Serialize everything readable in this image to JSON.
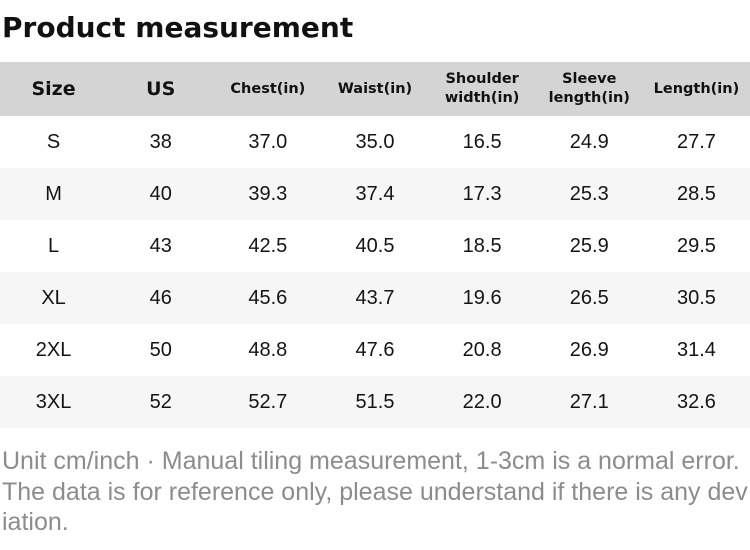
{
  "title": "Product measurement",
  "table": {
    "columns": [
      "Size",
      "US",
      "Chest(in)",
      "Waist(in)",
      "Shoulder width(in)",
      "Sleeve length(in)",
      "Length(in)"
    ],
    "rows": [
      [
        "S",
        "38",
        "37.0",
        "35.0",
        "16.5",
        "24.9",
        "27.7"
      ],
      [
        "M",
        "40",
        "39.3",
        "37.4",
        "17.3",
        "25.3",
        "28.5"
      ],
      [
        "L",
        "43",
        "42.5",
        "40.5",
        "18.5",
        "25.9",
        "29.5"
      ],
      [
        "XL",
        "46",
        "45.6",
        "43.7",
        "19.6",
        "26.5",
        "30.5"
      ],
      [
        "2XL",
        "50",
        "48.8",
        "47.6",
        "20.8",
        "26.9",
        "31.4"
      ],
      [
        "3XL",
        "52",
        "52.7",
        "51.5",
        "22.0",
        "27.1",
        "32.6"
      ]
    ]
  },
  "footer": {
    "note": "Unit cm/inch · Manual tiling measurement, 1-3cm is a normal error.The data is for reference only, please understand if there is any deviation."
  },
  "colors": {
    "header_bg": "#d4d4d4",
    "row_alt_bg": "#f6f6f6",
    "body_text": "#141414",
    "footer_text": "#8c8c8c"
  }
}
